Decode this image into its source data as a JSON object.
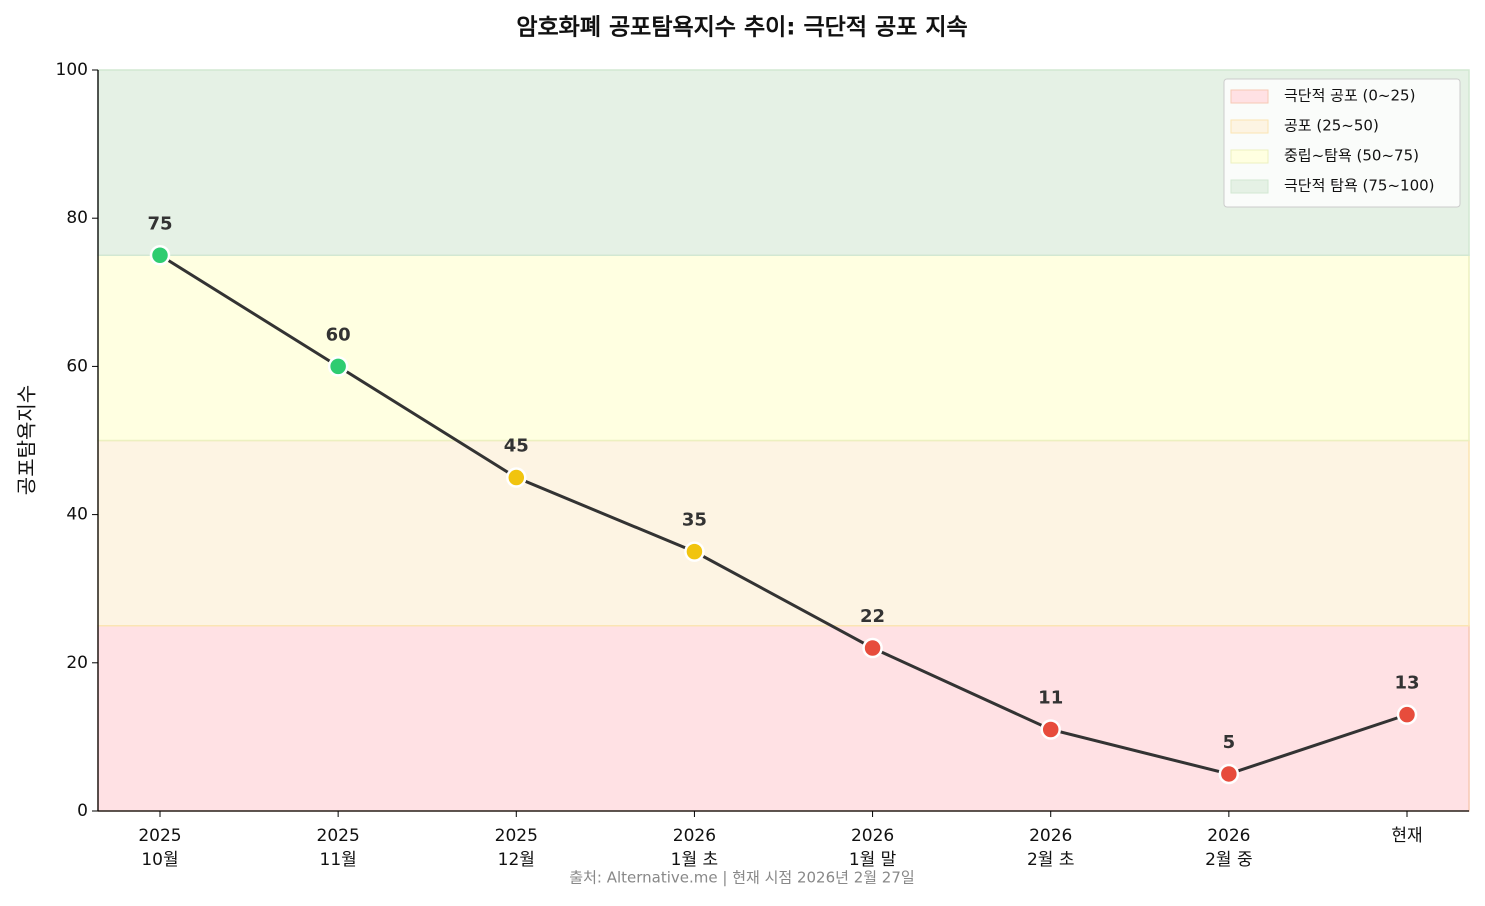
{
  "chart_data": {
    "type": "line",
    "title": "암호화폐 공포탐욕지수 추이: 극단적 공포 지속",
    "y_label": "공포탐욕지수",
    "source": "출처: Alternative.me | 현재 시점 2026년 2월 27일",
    "categories": [
      [
        "2025",
        "10월"
      ],
      [
        "2025",
        "11월"
      ],
      [
        "2025",
        "12월"
      ],
      [
        "2026",
        "1월 초"
      ],
      [
        "2026",
        "1월 말"
      ],
      [
        "2026",
        "2월 초"
      ],
      [
        "2026",
        "2월 중"
      ],
      [
        "현재"
      ]
    ],
    "values": [
      75,
      60,
      45,
      35,
      22,
      11,
      5,
      13
    ],
    "line_color": "#333333",
    "point_colors": [
      "#2ecc71",
      "#2ecc71",
      "#f1c40f",
      "#f1c40f",
      "#e74c3c",
      "#e74c3c",
      "#e74c3c",
      "#e74c3c"
    ],
    "bands": [
      {
        "name": "극단적 공포 (0~25)",
        "from": 0,
        "to": 25,
        "color": "#ffe1e4",
        "edge": "#f7c9b4"
      },
      {
        "name": "공포 (25~50)",
        "from": 25,
        "to": 50,
        "color": "#fdf4e3",
        "edge": "#fbe5b3"
      },
      {
        "name": "중립~탐욕 (50~75)",
        "from": 50,
        "to": 75,
        "color": "#ffffe1",
        "edge": "#ecf0c0"
      },
      {
        "name": "극단적 탐욕 (75~100)",
        "from": 75,
        "to": 100,
        "color": "#e5f1e5",
        "edge": "#d2e8d2"
      }
    ],
    "ylim": [
      0,
      100
    ],
    "yticks": [
      0,
      20,
      40,
      60,
      80,
      100
    ],
    "legend": "upper right"
  }
}
